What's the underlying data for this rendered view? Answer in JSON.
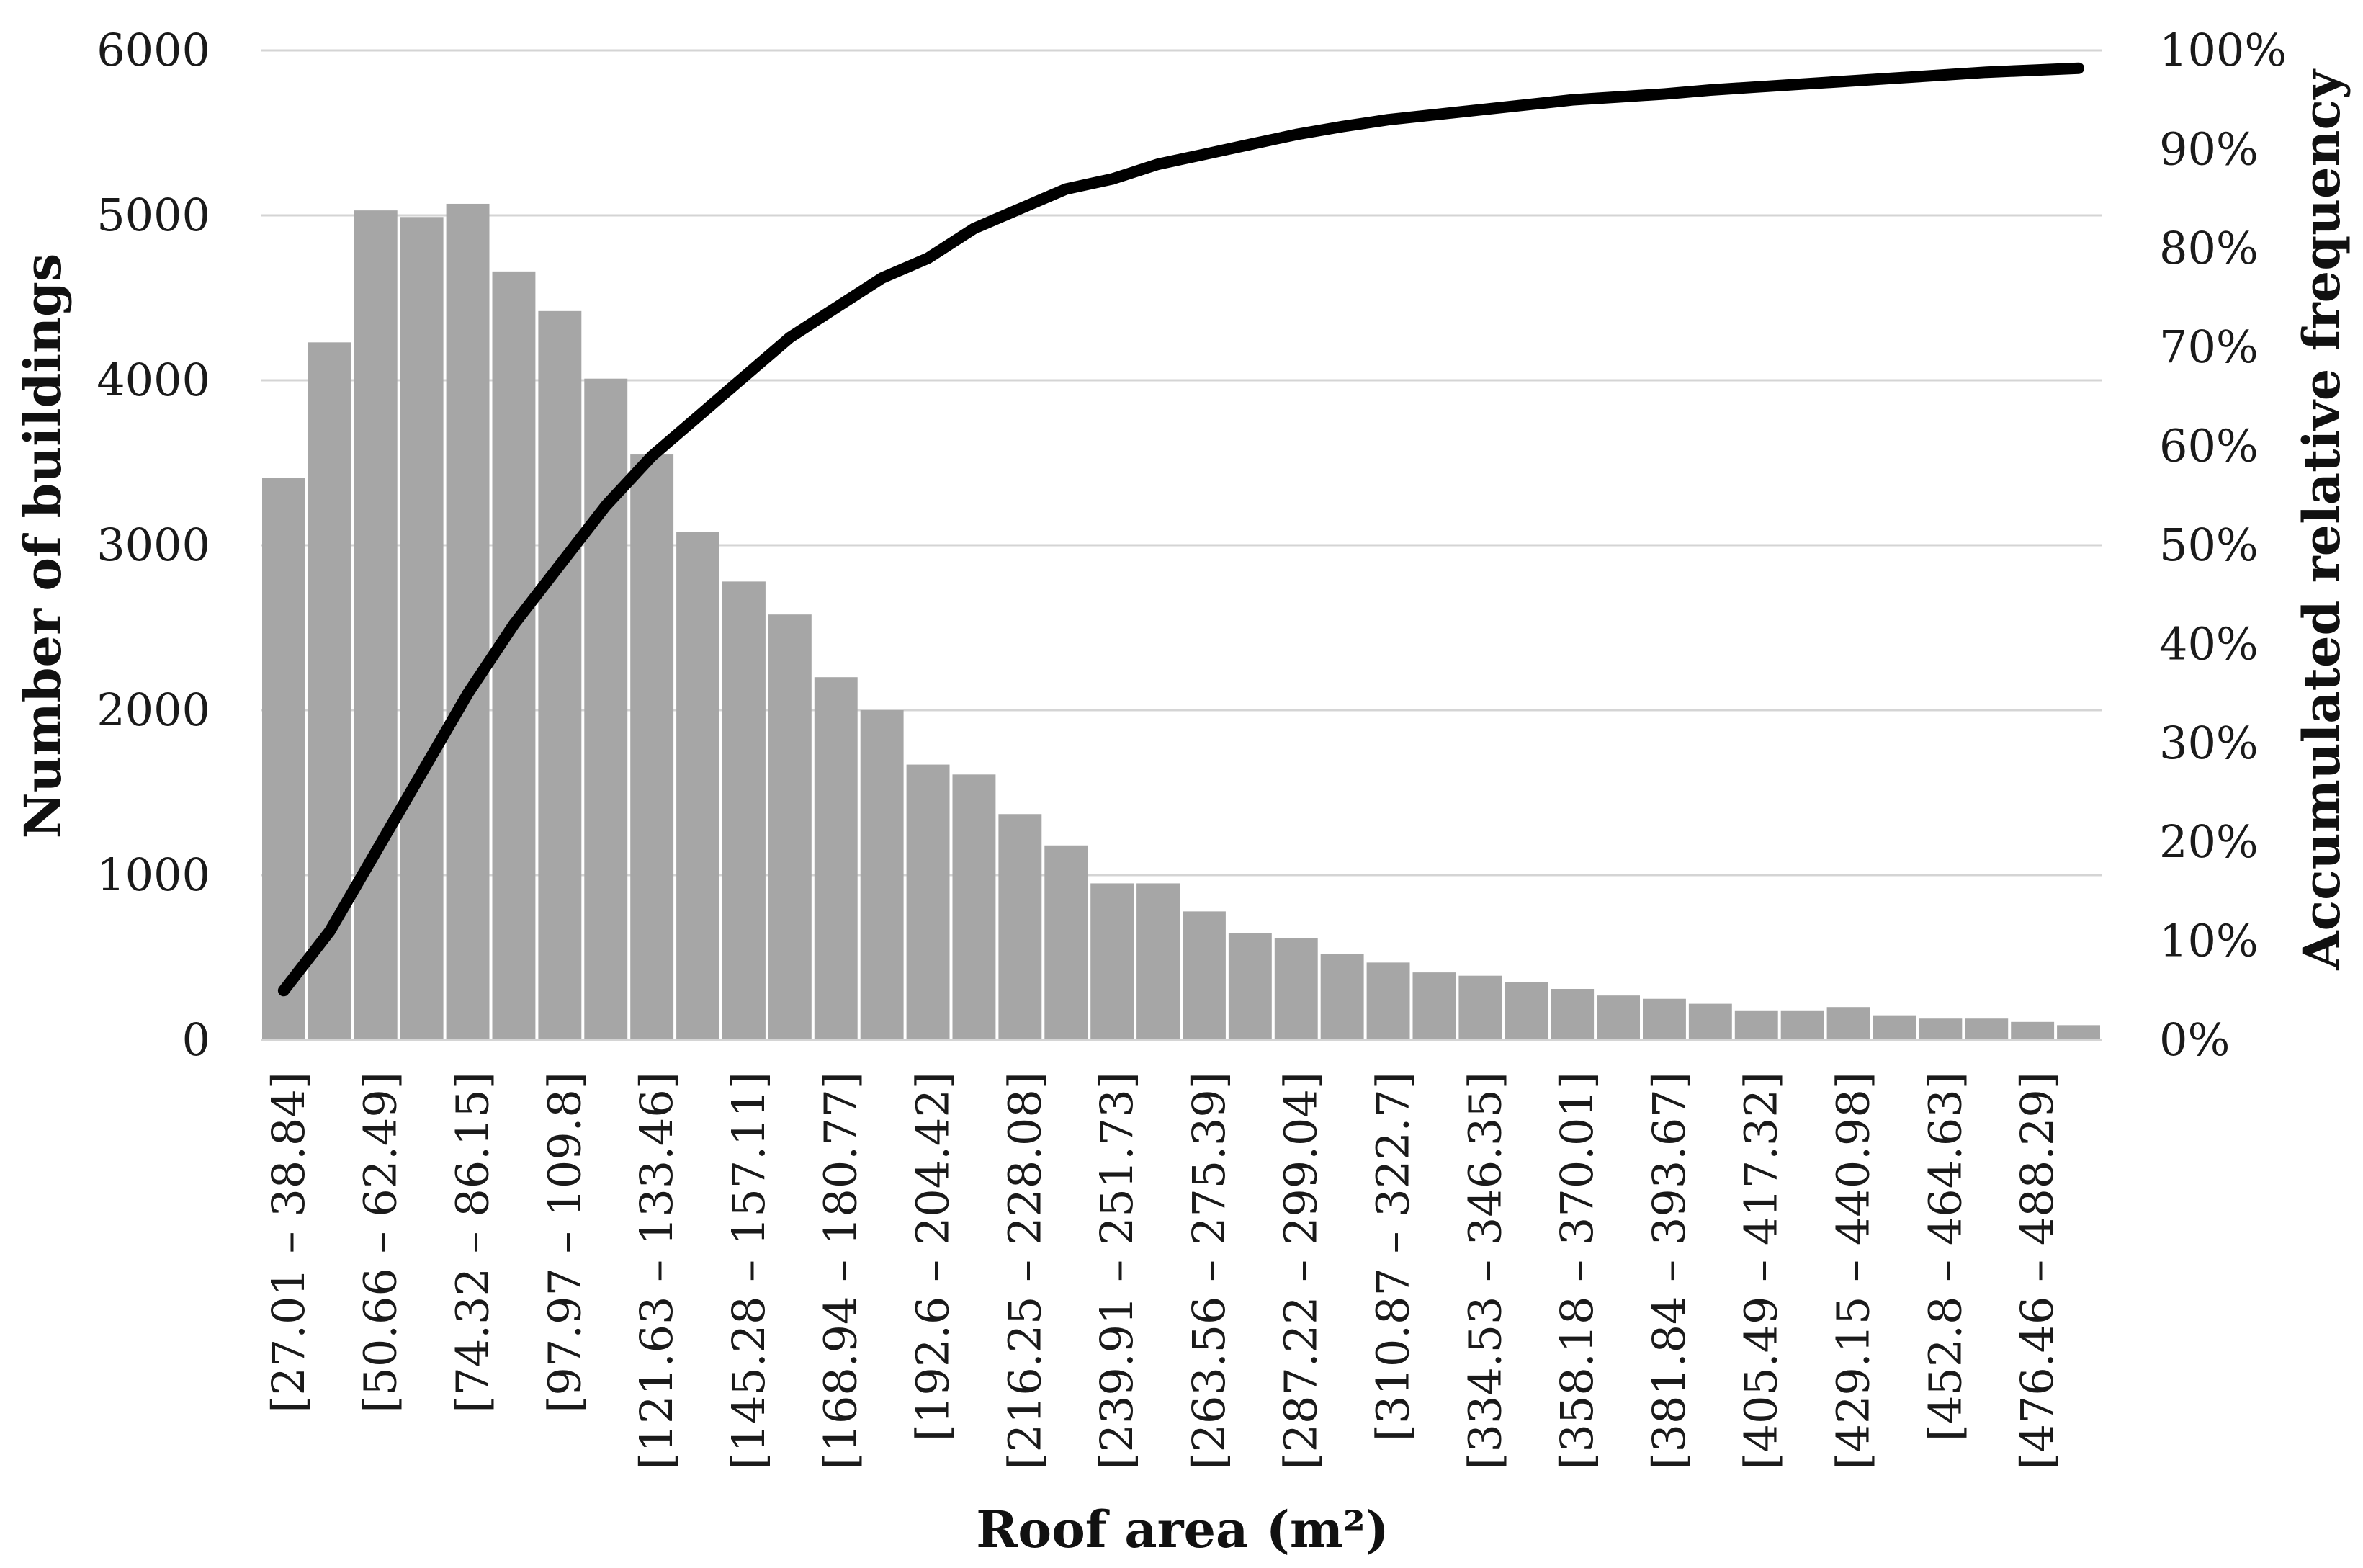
{
  "chart_data": {
    "type": "bar",
    "xlabel": "Roof area (m²)",
    "ylabel": "Number of buildings",
    "y2label": "Accumulated relative frequency",
    "ylim": [
      0,
      6000
    ],
    "y2lim": [
      0,
      100
    ],
    "yticks": [
      "0",
      "1000",
      "2000",
      "3000",
      "4000",
      "5000",
      "6000"
    ],
    "y2ticks": [
      "0%",
      "10%",
      "20%",
      "30%",
      "40%",
      "50%",
      "60%",
      "70%",
      "80%",
      "90%",
      "100%"
    ],
    "grid": true,
    "categories": [
      "[27.01 – 38.84]",
      "",
      "[50.66 – 62.49]",
      "",
      "[74.32 – 86.15]",
      "",
      "[97.97 – 109.8]",
      "",
      "[121.63 – 133.46]",
      "",
      "[145.28 – 157.11]",
      "",
      "[168.94 – 180.77]",
      "",
      "[192.6 – 204.42]",
      "",
      "[216.25 – 228.08]",
      "",
      "[239.91 – 251.73]",
      "",
      "[263.56 – 275.39]",
      "",
      "[287.22 – 299.04]",
      "",
      "[310.87 – 322.7]",
      "",
      "[334.53 – 346.35]",
      "",
      "[358.18 – 370.01]",
      "",
      "[381.84 – 393.67]",
      "",
      "[405.49 – 417.32]",
      "",
      "[429.15 – 440.98]",
      "",
      "[452.8 – 464.63]",
      "",
      "[476.46 – 488.29]",
      ""
    ],
    "series": [
      {
        "values": [
          3410,
          4230,
          5030,
          4990,
          5070,
          4660,
          4420,
          4010,
          3550,
          3080,
          2780,
          2580,
          2200,
          2000,
          1670,
          1610,
          1370,
          1180,
          950,
          950,
          780,
          650,
          620,
          520,
          470,
          410,
          390,
          350,
          310,
          270,
          250,
          220,
          180,
          180,
          200,
          150,
          130,
          130,
          110,
          90
        ]
      },
      {
        "values": [
          5,
          11,
          19,
          27,
          35,
          42,
          48,
          54,
          59,
          63,
          67,
          71,
          74,
          77,
          79,
          82,
          84,
          86,
          87,
          88.5,
          89.5,
          90.5,
          91.5,
          92.3,
          93,
          93.5,
          94,
          94.5,
          95,
          95.3,
          95.6,
          96,
          96.3,
          96.6,
          96.9,
          97.2,
          97.5,
          97.8,
          98,
          98.2
        ]
      }
    ],
    "colors": {
      "bars": "#a6a6a6",
      "line": "#000000",
      "grid": "#d4d4d4"
    }
  }
}
